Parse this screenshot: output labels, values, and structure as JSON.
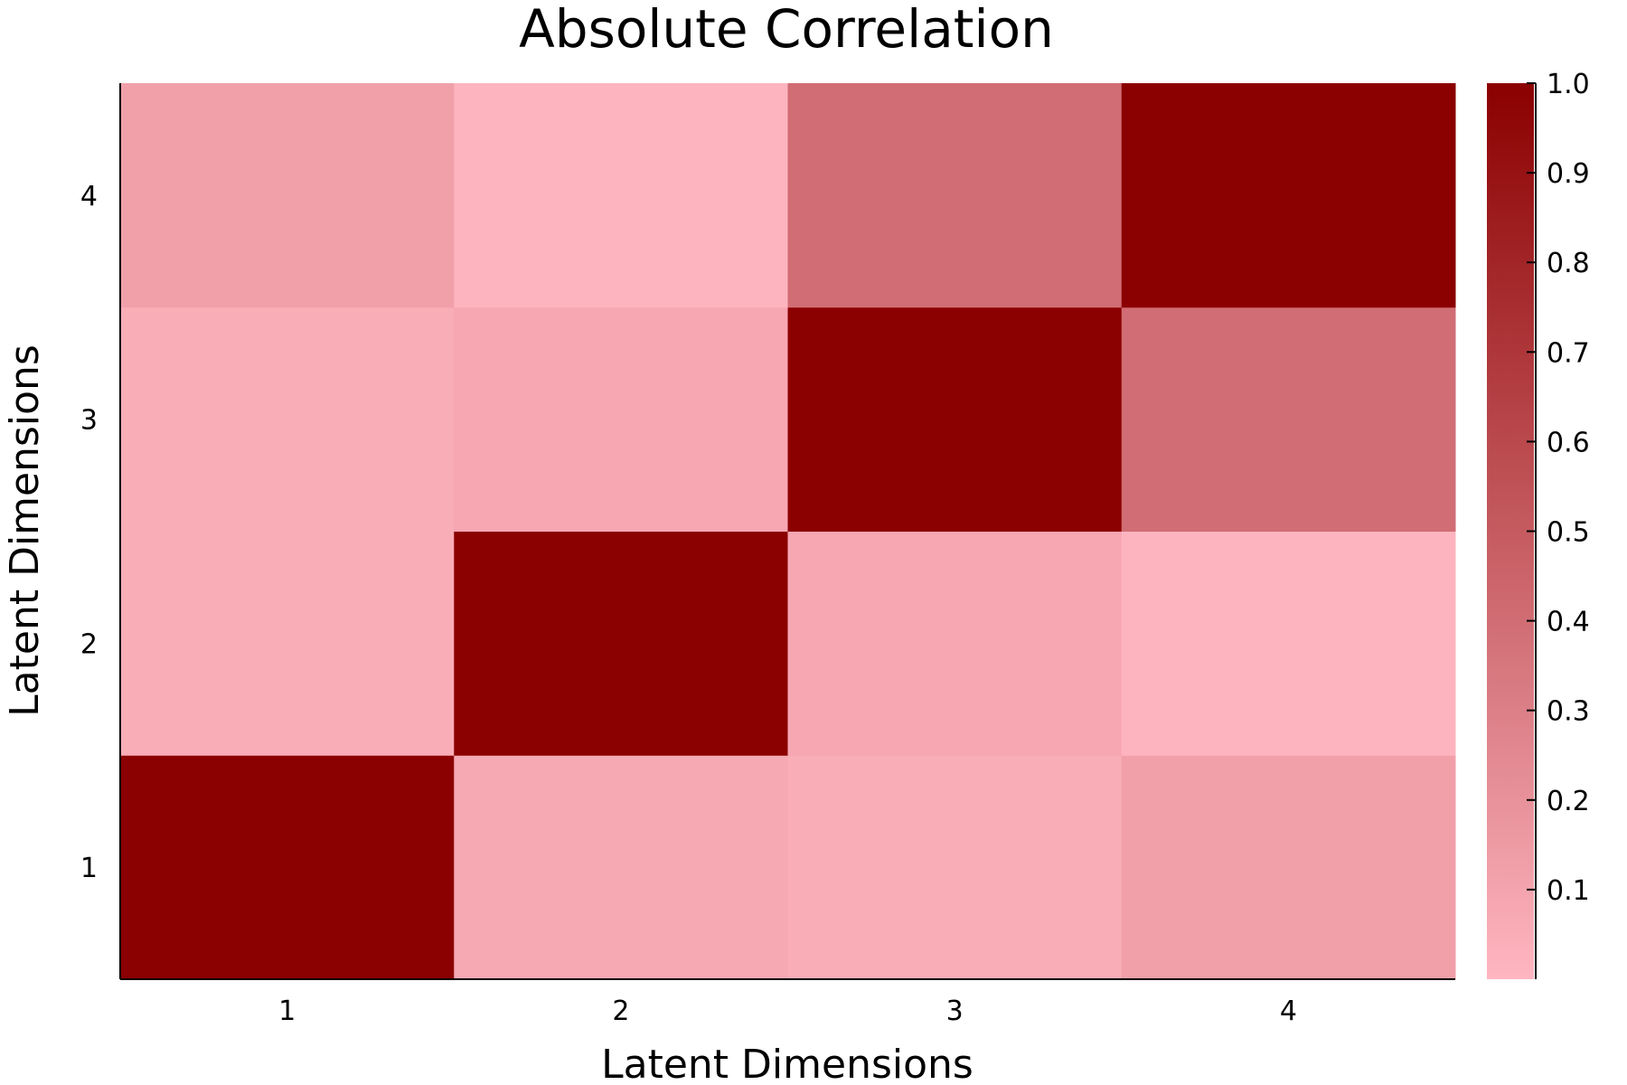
{
  "chart_data": {
    "type": "heatmap",
    "title": "Absolute Correlation",
    "xlabel": "Latent Dimensions",
    "ylabel": "Latent Dimensions",
    "x_categories": [
      "1",
      "2",
      "3",
      "4"
    ],
    "y_categories": [
      "1",
      "2",
      "3",
      "4"
    ],
    "values": [
      [
        1.0,
        0.07,
        0.05,
        0.12
      ],
      [
        0.05,
        1.0,
        0.08,
        0.01
      ],
      [
        0.05,
        0.08,
        1.0,
        0.4
      ],
      [
        0.12,
        0.01,
        0.4,
        1.0
      ]
    ],
    "colorbar": {
      "range": [
        0.0,
        1.0
      ],
      "ticks": [
        "0.1",
        "0.2",
        "0.3",
        "0.4",
        "0.5",
        "0.6",
        "0.7",
        "0.8",
        "0.9",
        "1.0"
      ],
      "tick_values": [
        0.1,
        0.2,
        0.3,
        0.4,
        0.5,
        0.6,
        0.7,
        0.8,
        0.9,
        1.0
      ],
      "color_low": "#FFB6C1",
      "color_high": "#8B0000"
    },
    "grid": false
  }
}
